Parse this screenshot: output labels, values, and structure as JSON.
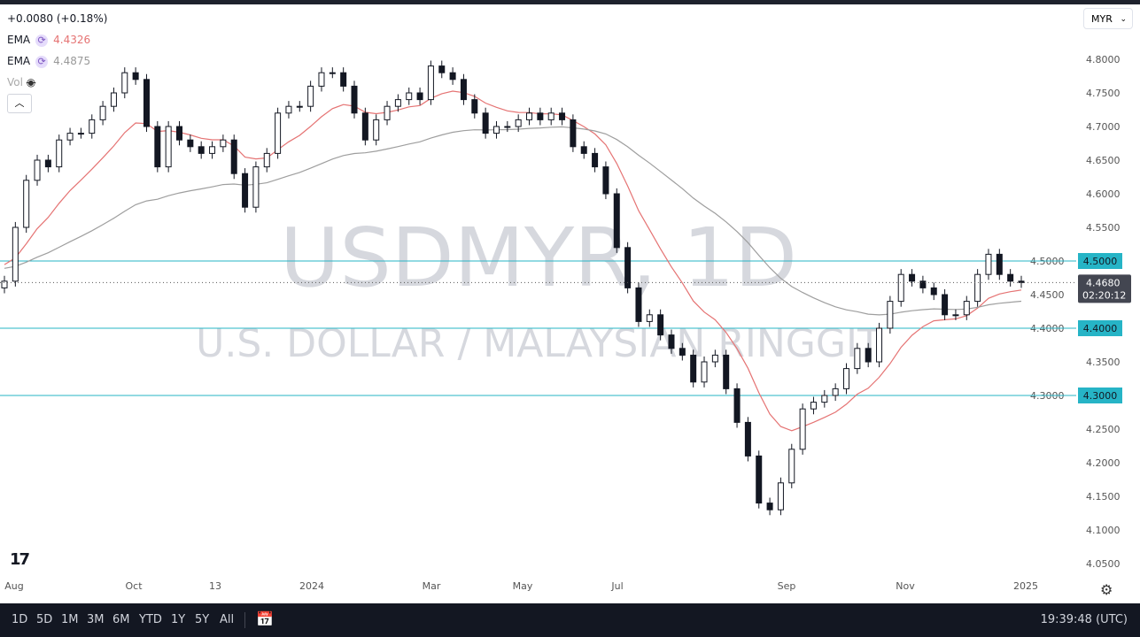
{
  "header": {
    "change": "+0.0080 (+0.18%)",
    "ema1_label": "EMA",
    "ema1_value": "4.4326",
    "ema2_label": "EMA",
    "ema2_value": "4.4875",
    "vol_label": "Vol",
    "currency": "MYR"
  },
  "colors": {
    "up": "#131722",
    "ema1": "#e57373",
    "ema2": "#9e9e9e",
    "level": "#26b4c6",
    "watermark": "#d6d8de"
  },
  "watermark": {
    "symbol": "USDMYR, 1D",
    "name": "U.S. DOLLAR / MALAYSIAN RINGGIT"
  },
  "chart_data": {
    "type": "candlestick",
    "ylim": [
      4.03,
      4.83
    ],
    "y_ticks": [
      "4.8000",
      "4.7500",
      "4.7000",
      "4.6500",
      "4.6000",
      "4.5500",
      "4.5000",
      "4.4500",
      "4.4000",
      "4.3500",
      "4.3000",
      "4.2500",
      "4.2000",
      "4.1500",
      "4.1000",
      "4.0500"
    ],
    "x_ticks": [
      "Aug",
      "Oct",
      "13",
      "2024",
      "Mar",
      "May",
      "Jul",
      "Sep",
      "Nov",
      "2025"
    ],
    "closes": [
      4.47,
      4.55,
      4.62,
      4.65,
      4.64,
      4.68,
      4.69,
      4.69,
      4.71,
      4.73,
      4.75,
      4.78,
      4.77,
      4.7,
      4.64,
      4.7,
      4.68,
      4.67,
      4.66,
      4.67,
      4.68,
      4.63,
      4.58,
      4.64,
      4.66,
      4.72,
      4.73,
      4.73,
      4.76,
      4.78,
      4.78,
      4.76,
      4.72,
      4.68,
      4.71,
      4.73,
      4.74,
      4.75,
      4.74,
      4.79,
      4.78,
      4.77,
      4.74,
      4.72,
      4.69,
      4.7,
      4.7,
      4.71,
      4.72,
      4.71,
      4.72,
      4.71,
      4.67,
      4.66,
      4.64,
      4.6,
      4.52,
      4.46,
      4.41,
      4.42,
      4.39,
      4.37,
      4.36,
      4.32,
      4.35,
      4.36,
      4.31,
      4.26,
      4.21,
      4.14,
      4.13,
      4.17,
      4.22,
      4.28,
      4.29,
      4.3,
      4.31,
      4.34,
      4.37,
      4.35,
      4.4,
      4.44,
      4.48,
      4.47,
      4.46,
      4.45,
      4.42,
      4.42,
      4.44,
      4.48,
      4.51,
      4.48,
      4.47,
      4.468
    ],
    "levels": [
      {
        "value": 4.5,
        "label": "4.5000"
      },
      {
        "value": 4.4,
        "label": "4.4000"
      },
      {
        "value": 4.3,
        "label": "4.3000"
      }
    ],
    "last_price": {
      "value": 4.468,
      "label": "4.4680",
      "countdown": "02:20:12"
    }
  },
  "footer": {
    "ranges": [
      "1D",
      "5D",
      "1M",
      "3M",
      "6M",
      "YTD",
      "1Y",
      "5Y",
      "All"
    ],
    "clock": "19:39:48 (UTC)"
  }
}
